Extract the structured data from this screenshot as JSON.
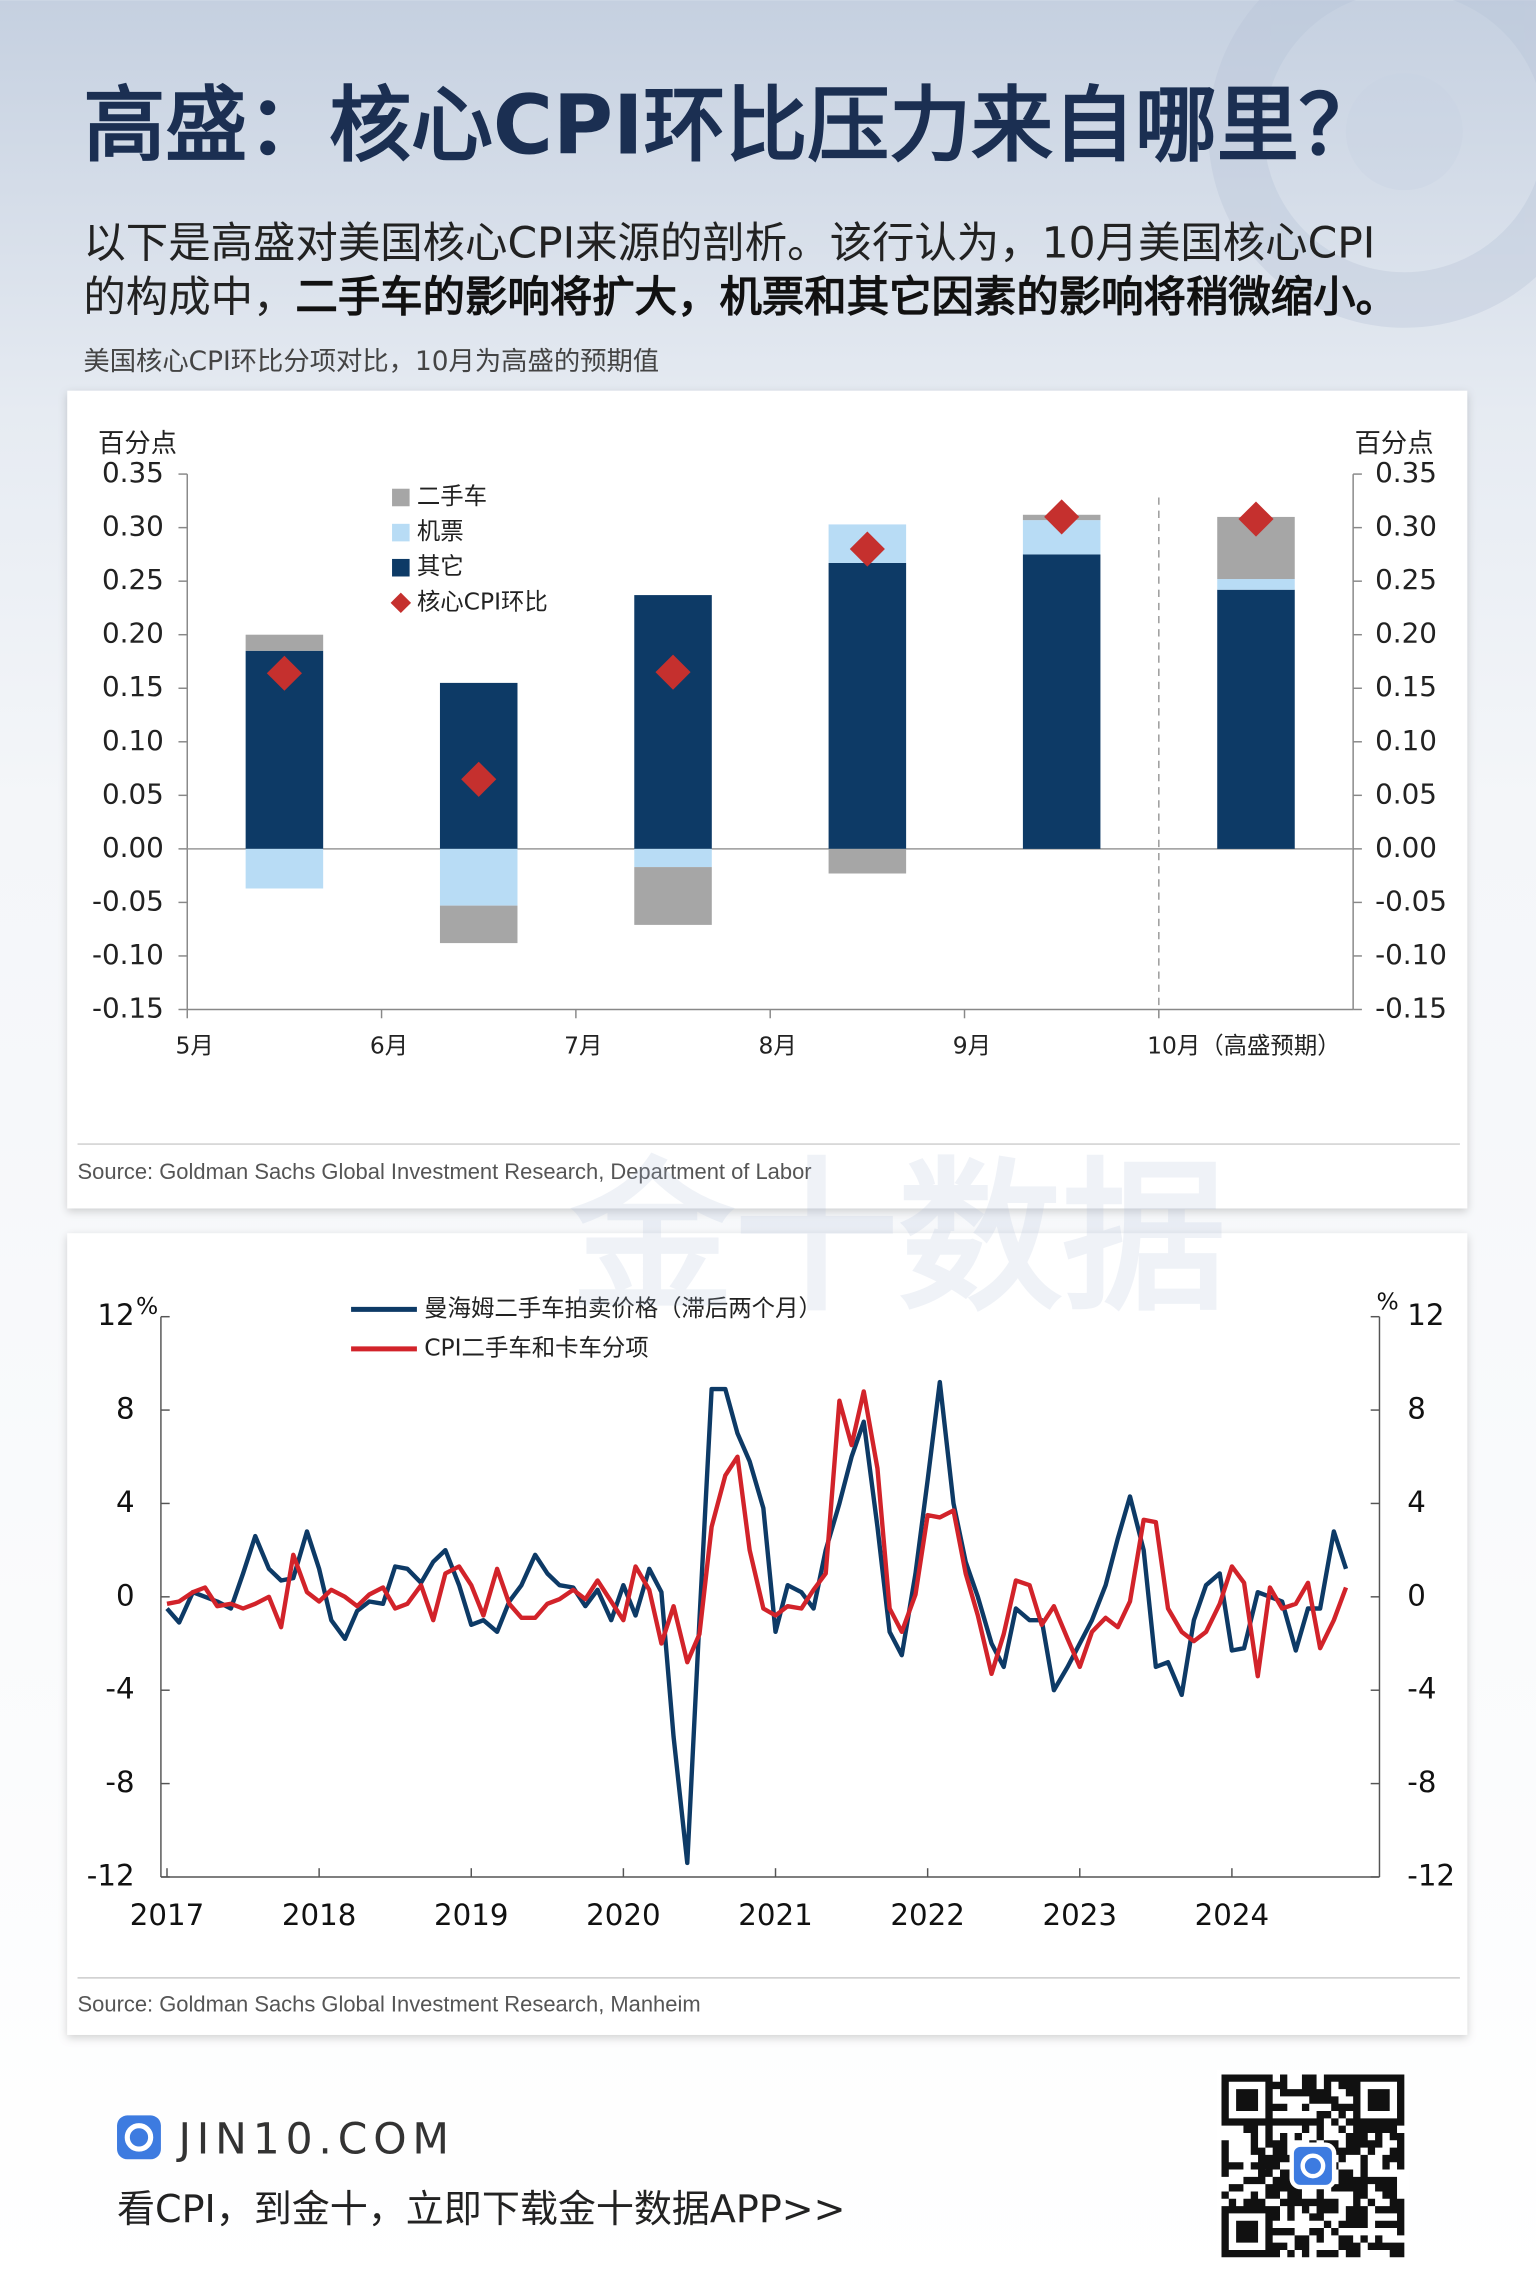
{
  "header": {
    "title": "高盛：核心CPI环比压力来自哪里？",
    "intro_line1": "以下是高盛对美国核心CPI来源的剖析。该行认为，10月美国核心CPI",
    "intro_line2": "的构成中，",
    "intro_line2_bold": "二手车的影响将扩大，机票和其它因素的影响将稍微缩小。"
  },
  "watermark": "金十数据",
  "chart_data": [
    {
      "type": "bar",
      "stacked": true,
      "title": "美国核心CPI环比分项对比，10月为高盛的预期值",
      "y_label": "百分点",
      "y2_label": "百分点",
      "categories": [
        "5月",
        "6月",
        "7月",
        "8月",
        "9月",
        "10月（高盛预期）"
      ],
      "series": [
        {
          "name": "二手车",
          "type": "bar",
          "color": "#a6a6a6",
          "values": [
            0.015,
            -0.035,
            -0.054,
            -0.023,
            0.005,
            0.058
          ]
        },
        {
          "name": "机票",
          "type": "bar",
          "color": "#b8dcf5",
          "values": [
            -0.037,
            -0.053,
            -0.017,
            0.036,
            0.032,
            0.01
          ]
        },
        {
          "name": "其它",
          "type": "bar",
          "color": "#0d3a66",
          "values": [
            0.185,
            0.155,
            0.237,
            0.267,
            0.275,
            0.242
          ]
        },
        {
          "name": "核心CPI环比",
          "type": "scatter",
          "marker": "diamond",
          "color": "#c5302e",
          "values": [
            0.164,
            0.065,
            0.165,
            0.28,
            0.31,
            0.308
          ]
        }
      ],
      "ylim": [
        -0.15,
        0.35
      ],
      "yticks": [
        0.35,
        {
          "value": 0.3,
          "label": "0.30"
        },
        0.25,
        {
          "value": 0.2,
          "label": "0.20"
        },
        0.15,
        {
          "value": 0.1,
          "label": "0.10"
        },
        0.05,
        {
          "value": 0,
          "label": "0.00"
        },
        -0.05,
        {
          "value": -0.1,
          "label": "-0.10"
        },
        -0.15
      ],
      "y2lim": [
        -0.15,
        0.35
      ],
      "y2ticks": [
        0.35,
        {
          "value": 0.3,
          "label": "0.30"
        },
        0.25,
        {
          "value": 0.2,
          "label": "0.20"
        },
        0.15,
        {
          "value": 0.1,
          "label": "0.10"
        },
        0.05,
        {
          "value": 0,
          "label": "0.00"
        },
        -0.05,
        {
          "value": -0.1,
          "label": "-0.10"
        },
        -0.15
      ],
      "grid": false,
      "legend": "upper left",
      "source": "Source: Goldman Sachs Global Investment Research, Department of Labor"
    },
    {
      "type": "line",
      "y_unit": "%",
      "y2_unit": "%",
      "x": [
        2017,
        2017.08,
        2017.17,
        2017.25,
        2017.33,
        2017.42,
        2017.5,
        2017.58,
        2017.67,
        2017.75,
        2017.83,
        2017.92,
        2018,
        2018.08,
        2018.17,
        2018.25,
        2018.33,
        2018.42,
        2018.5,
        2018.58,
        2018.67,
        2018.75,
        2018.83,
        2018.92,
        2019,
        2019.08,
        2019.17,
        2019.25,
        2019.33,
        2019.42,
        2019.5,
        2019.58,
        2019.67,
        2019.75,
        2019.83,
        2019.92,
        2020,
        2020.08,
        2020.17,
        2020.25,
        2020.33,
        2020.42,
        2020.5,
        2020.58,
        2020.67,
        2020.75,
        2020.83,
        2020.92,
        2021,
        2021.08,
        2021.17,
        2021.25,
        2021.33,
        2021.42,
        2021.5,
        2021.58,
        2021.67,
        2021.75,
        2021.83,
        2021.92,
        2022,
        2022.08,
        2022.17,
        2022.25,
        2022.33,
        2022.42,
        2022.5,
        2022.58,
        2022.67,
        2022.75,
        2022.83,
        2022.92,
        2023,
        2023.08,
        2023.17,
        2023.25,
        2023.33,
        2023.42,
        2023.5,
        2023.58,
        2023.67,
        2023.75,
        2023.83,
        2023.92,
        2024,
        2024.08,
        2024.17,
        2024.25,
        2024.33,
        2024.42,
        2024.5,
        2024.58,
        2024.67,
        2024.75
      ],
      "series": [
        {
          "name": "曼海姆二手车拍卖价格（滞后两个月）",
          "color": "#0d3a66",
          "values": [
            -0.5,
            -1.1,
            0.2,
            0,
            -0.2,
            -0.5,
            1.0,
            2.6,
            1.2,
            0.7,
            0.8,
            2.8,
            1.2,
            -1.0,
            -1.8,
            -0.6,
            -0.2,
            -0.3,
            1.3,
            1.2,
            0.6,
            1.5,
            2.0,
            0.5,
            -1.2,
            -1.0,
            -1.5,
            -0.2,
            0.5,
            1.8,
            1.0,
            0.5,
            0.4,
            -0.4,
            0.3,
            -1.0,
            0.5,
            -0.8,
            1.2,
            0.2,
            -6.0,
            -11.4,
            -1.0,
            8.9,
            8.9,
            7.0,
            5.8,
            3.8,
            -1.5,
            0.5,
            0.2,
            -0.5,
            2.0,
            4.0,
            6.0,
            7.5,
            3.0,
            -1.5,
            -2.5,
            1.0,
            5.0,
            9.2,
            4.0,
            1.5,
            0,
            -2.0,
            -3.0,
            -0.5,
            -1.0,
            -1.0,
            -4.0,
            -3.0,
            -2.0,
            -1.0,
            0.5,
            2.5,
            4.3,
            2.0,
            -3.0,
            -2.8,
            -4.2,
            -1.0,
            0.5,
            1.0,
            -2.3,
            -2.2,
            0.2,
            0,
            -0.2,
            -2.3,
            -0.5,
            -0.5,
            2.8,
            1.2
          ]
        },
        {
          "name": "CPI二手车和卡车分项",
          "color": "#d2232a",
          "values": [
            -0.3,
            -0.2,
            0.2,
            0.4,
            -0.4,
            -0.3,
            -0.5,
            -0.3,
            0,
            -1.3,
            1.8,
            0.2,
            -0.2,
            0.3,
            0,
            -0.4,
            0.1,
            0.4,
            -0.5,
            -0.3,
            0.5,
            -1.0,
            1.0,
            1.3,
            0.5,
            -0.8,
            1.2,
            -0.3,
            -0.9,
            -0.9,
            -0.3,
            -0.1,
            0.3,
            -0.1,
            0.7,
            -0.2,
            -1.0,
            1.3,
            0.3,
            -2.0,
            -0.4,
            -2.8,
            -1.6,
            3.0,
            5.2,
            6.0,
            2.0,
            -0.5,
            -0.8,
            -0.4,
            -0.5,
            0.3,
            1.0,
            8.4,
            6.5,
            8.8,
            5.5,
            -0.5,
            -1.5,
            0.1,
            3.5,
            3.4,
            3.7,
            1.0,
            -0.8,
            -3.3,
            -1.6,
            0.7,
            0.5,
            -1.2,
            -0.4,
            -1.8,
            -3.0,
            -1.5,
            -0.9,
            -1.3,
            -0.2,
            3.3,
            3.2,
            -0.5,
            -1.5,
            -1.9,
            -1.5,
            -0.3,
            1.3,
            0.6,
            -3.4,
            0.4,
            -0.5,
            -0.3,
            0.6,
            -2.2,
            -1.0,
            0.4
          ]
        }
      ],
      "xlim": [
        2016.96,
        2024.97
      ],
      "xticks": [
        2017,
        2018,
        2019,
        2020,
        2021,
        2022,
        2023,
        2024
      ],
      "ylim": [
        -12,
        12
      ],
      "yticks": [
        12,
        8,
        4,
        0,
        -4,
        -8,
        -12
      ],
      "y2lim": [
        -12,
        12
      ],
      "y2ticks": [
        12,
        8,
        4,
        0,
        -4,
        -8,
        -12
      ],
      "grid": false,
      "legend": "upper left",
      "source": "Source: Goldman Sachs Global Investment Research, Manheim"
    }
  ],
  "footer": {
    "brand": "JIN10.COM",
    "slogan": "看CPI，到金十，立即下载金十数据APP>>"
  }
}
